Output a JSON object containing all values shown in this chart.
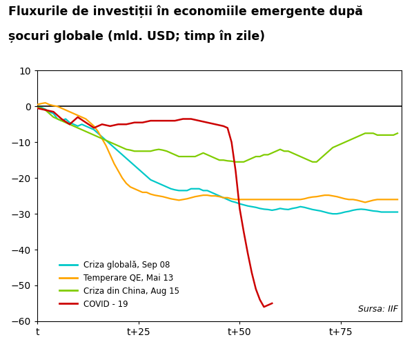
{
  "title_line1": "Fluxurile de investiții în economiile emergente după",
  "title_line2": "șocuri globale (mld. USD; timp în zile)",
  "xlabel_ticks": [
    "t",
    "t+25",
    "t+50",
    "t+75"
  ],
  "xlabel_tick_positions": [
    0,
    25,
    50,
    75
  ],
  "ylim": [
    -60,
    10
  ],
  "yticks": [
    -60,
    -50,
    -40,
    -30,
    -20,
    -10,
    0,
    10
  ],
  "source_text": "Sursa: IIF",
  "legend_labels": [
    "Criza globală, Sep 08",
    "Temperare QE, Mai 13",
    "Criza din China, Aug 15",
    "COVID - 19"
  ],
  "colors": {
    "cyan": "#00C8C8",
    "orange": "#FFA500",
    "green": "#80CC00",
    "red": "#CC0000"
  },
  "background_color": "#ffffff",
  "series_cyan": [
    -0.5,
    -0.3,
    -0.8,
    -1.5,
    -2.0,
    -3.5,
    -4.0,
    -3.5,
    -4.5,
    -5.0,
    -5.5,
    -5.0,
    -5.5,
    -6.0,
    -6.5,
    -7.5,
    -8.5,
    -9.5,
    -10.5,
    -11.5,
    -12.5,
    -13.5,
    -14.5,
    -15.5,
    -16.5,
    -17.5,
    -18.5,
    -19.5,
    -20.5,
    -21.0,
    -21.5,
    -22.0,
    -22.5,
    -23.0,
    -23.3,
    -23.5,
    -23.5,
    -23.5,
    -23.0,
    -23.0,
    -23.0,
    -23.5,
    -23.5,
    -24.0,
    -24.5,
    -25.0,
    -25.5,
    -26.0,
    -26.5,
    -26.8,
    -27.2,
    -27.5,
    -27.8,
    -28.0,
    -28.2,
    -28.5,
    -28.7,
    -28.8,
    -29.0,
    -28.8,
    -28.5,
    -28.7,
    -28.8,
    -28.5,
    -28.3,
    -28.0,
    -28.2,
    -28.5,
    -28.8,
    -29.0,
    -29.2,
    -29.5,
    -29.8,
    -30.0,
    -30.0,
    -29.8,
    -29.5,
    -29.3,
    -29.0,
    -28.8,
    -28.7,
    -28.8,
    -29.0,
    -29.2,
    -29.3,
    -29.5,
    -29.5,
    -29.5,
    -29.5,
    -29.5
  ],
  "series_orange": [
    0.5,
    0.8,
    1.0,
    0.5,
    0.2,
    0.0,
    -0.5,
    -1.0,
    -1.5,
    -2.0,
    -2.5,
    -3.0,
    -3.5,
    -4.5,
    -5.5,
    -7.0,
    -9.0,
    -11.0,
    -13.5,
    -16.0,
    -18.0,
    -20.0,
    -21.5,
    -22.5,
    -23.0,
    -23.5,
    -24.0,
    -24.0,
    -24.5,
    -24.8,
    -25.0,
    -25.2,
    -25.5,
    -25.8,
    -26.0,
    -26.2,
    -26.0,
    -25.8,
    -25.5,
    -25.2,
    -25.0,
    -24.8,
    -24.8,
    -25.0,
    -25.0,
    -25.2,
    -25.5,
    -25.5,
    -25.8,
    -26.0,
    -26.0,
    -26.0,
    -26.0,
    -26.0,
    -26.0,
    -26.0,
    -26.0,
    -26.0,
    -26.0,
    -26.0,
    -26.0,
    -26.0,
    -26.0,
    -26.0,
    -26.0,
    -26.0,
    -25.8,
    -25.5,
    -25.3,
    -25.2,
    -25.0,
    -24.8,
    -24.8,
    -25.0,
    -25.2,
    -25.5,
    -25.8,
    -26.0,
    -26.0,
    -26.2,
    -26.5,
    -26.8,
    -26.5,
    -26.2,
    -26.0,
    -26.0,
    -26.0,
    -26.0,
    -26.0,
    -26.0
  ],
  "series_green": [
    -0.3,
    -0.5,
    -1.0,
    -2.0,
    -3.0,
    -3.5,
    -4.0,
    -4.5,
    -5.0,
    -5.5,
    -6.0,
    -6.5,
    -7.0,
    -7.5,
    -8.0,
    -8.5,
    -9.0,
    -9.5,
    -10.0,
    -10.5,
    -11.0,
    -11.5,
    -12.0,
    -12.2,
    -12.5,
    -12.5,
    -12.5,
    -12.5,
    -12.5,
    -12.2,
    -12.0,
    -12.2,
    -12.5,
    -13.0,
    -13.5,
    -14.0,
    -14.0,
    -14.0,
    -14.0,
    -14.0,
    -13.5,
    -13.0,
    -13.5,
    -14.0,
    -14.5,
    -15.0,
    -15.0,
    -15.2,
    -15.3,
    -15.5,
    -15.5,
    -15.5,
    -15.0,
    -14.5,
    -14.0,
    -14.0,
    -13.5,
    -13.5,
    -13.0,
    -12.5,
    -12.0,
    -12.5,
    -12.5,
    -13.0,
    -13.5,
    -14.0,
    -14.5,
    -15.0,
    -15.5,
    -15.5,
    -14.5,
    -13.5,
    -12.5,
    -11.5,
    -11.0,
    -10.5,
    -10.0,
    -9.5,
    -9.0,
    -8.5,
    -8.0,
    -7.5,
    -7.5,
    -7.5,
    -8.0,
    -8.0,
    -8.0,
    -8.0,
    -8.0,
    -7.5
  ],
  "series_red_x": [
    0,
    2,
    4,
    6,
    8,
    10,
    12,
    14,
    16,
    18,
    20,
    22,
    24,
    26,
    28,
    30,
    32,
    34,
    36,
    38,
    40,
    42,
    44,
    46,
    47,
    48,
    49,
    50,
    51,
    52,
    53,
    54,
    55,
    56,
    57,
    58
  ],
  "series_red_y": [
    -0.5,
    -1.0,
    -1.5,
    -3.5,
    -5.0,
    -3.0,
    -4.5,
    -6.0,
    -5.0,
    -5.5,
    -5.0,
    -5.0,
    -4.5,
    -4.5,
    -4.0,
    -4.0,
    -4.0,
    -4.0,
    -3.5,
    -3.5,
    -4.0,
    -4.5,
    -5.0,
    -5.5,
    -6.0,
    -10.0,
    -18.0,
    -28.5,
    -35.0,
    -41.0,
    -46.5,
    -51.0,
    -54.0,
    -56.0,
    -55.5,
    -55.0
  ]
}
